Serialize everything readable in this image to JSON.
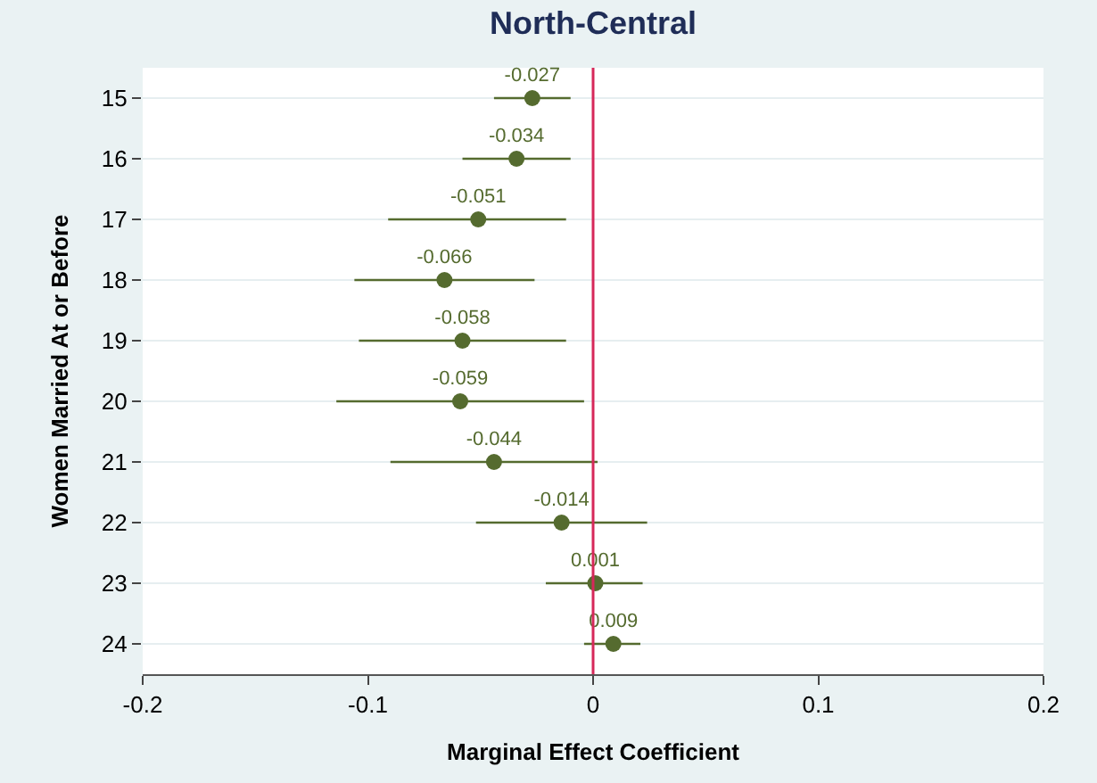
{
  "chart_data": {
    "type": "scatter",
    "orientation": "horizontal",
    "title": "North-Central",
    "xlabel": "Marginal Effect Coefficient",
    "ylabel": "Women Married At or Before",
    "categories": [
      "15",
      "16",
      "17",
      "18",
      "19",
      "20",
      "21",
      "22",
      "23",
      "24"
    ],
    "series": [
      {
        "color": "#556b2f",
        "values": [
          -0.027,
          -0.034,
          -0.051,
          -0.066,
          -0.058,
          -0.059,
          -0.044,
          -0.014,
          0.001,
          0.009
        ],
        "errors": [
          [
            -0.044,
            -0.01
          ],
          [
            -0.058,
            -0.01
          ],
          [
            -0.091,
            -0.012
          ],
          [
            -0.106,
            -0.026
          ],
          [
            -0.104,
            -0.012
          ],
          [
            -0.114,
            -0.004
          ],
          [
            -0.09,
            0.002
          ],
          [
            -0.052,
            0.024
          ],
          [
            -0.021,
            0.022
          ],
          [
            -0.004,
            0.021
          ]
        ]
      }
    ],
    "data_labels": true,
    "marker": "circle",
    "grid": "y",
    "legend": false,
    "xlim": [
      -0.2,
      0.2
    ],
    "xticks": [
      -0.2,
      -0.1,
      0,
      0.1,
      0.2
    ],
    "ref_lines": [
      {
        "axis": "x",
        "value": 0,
        "color": "#d6285a"
      }
    ]
  }
}
